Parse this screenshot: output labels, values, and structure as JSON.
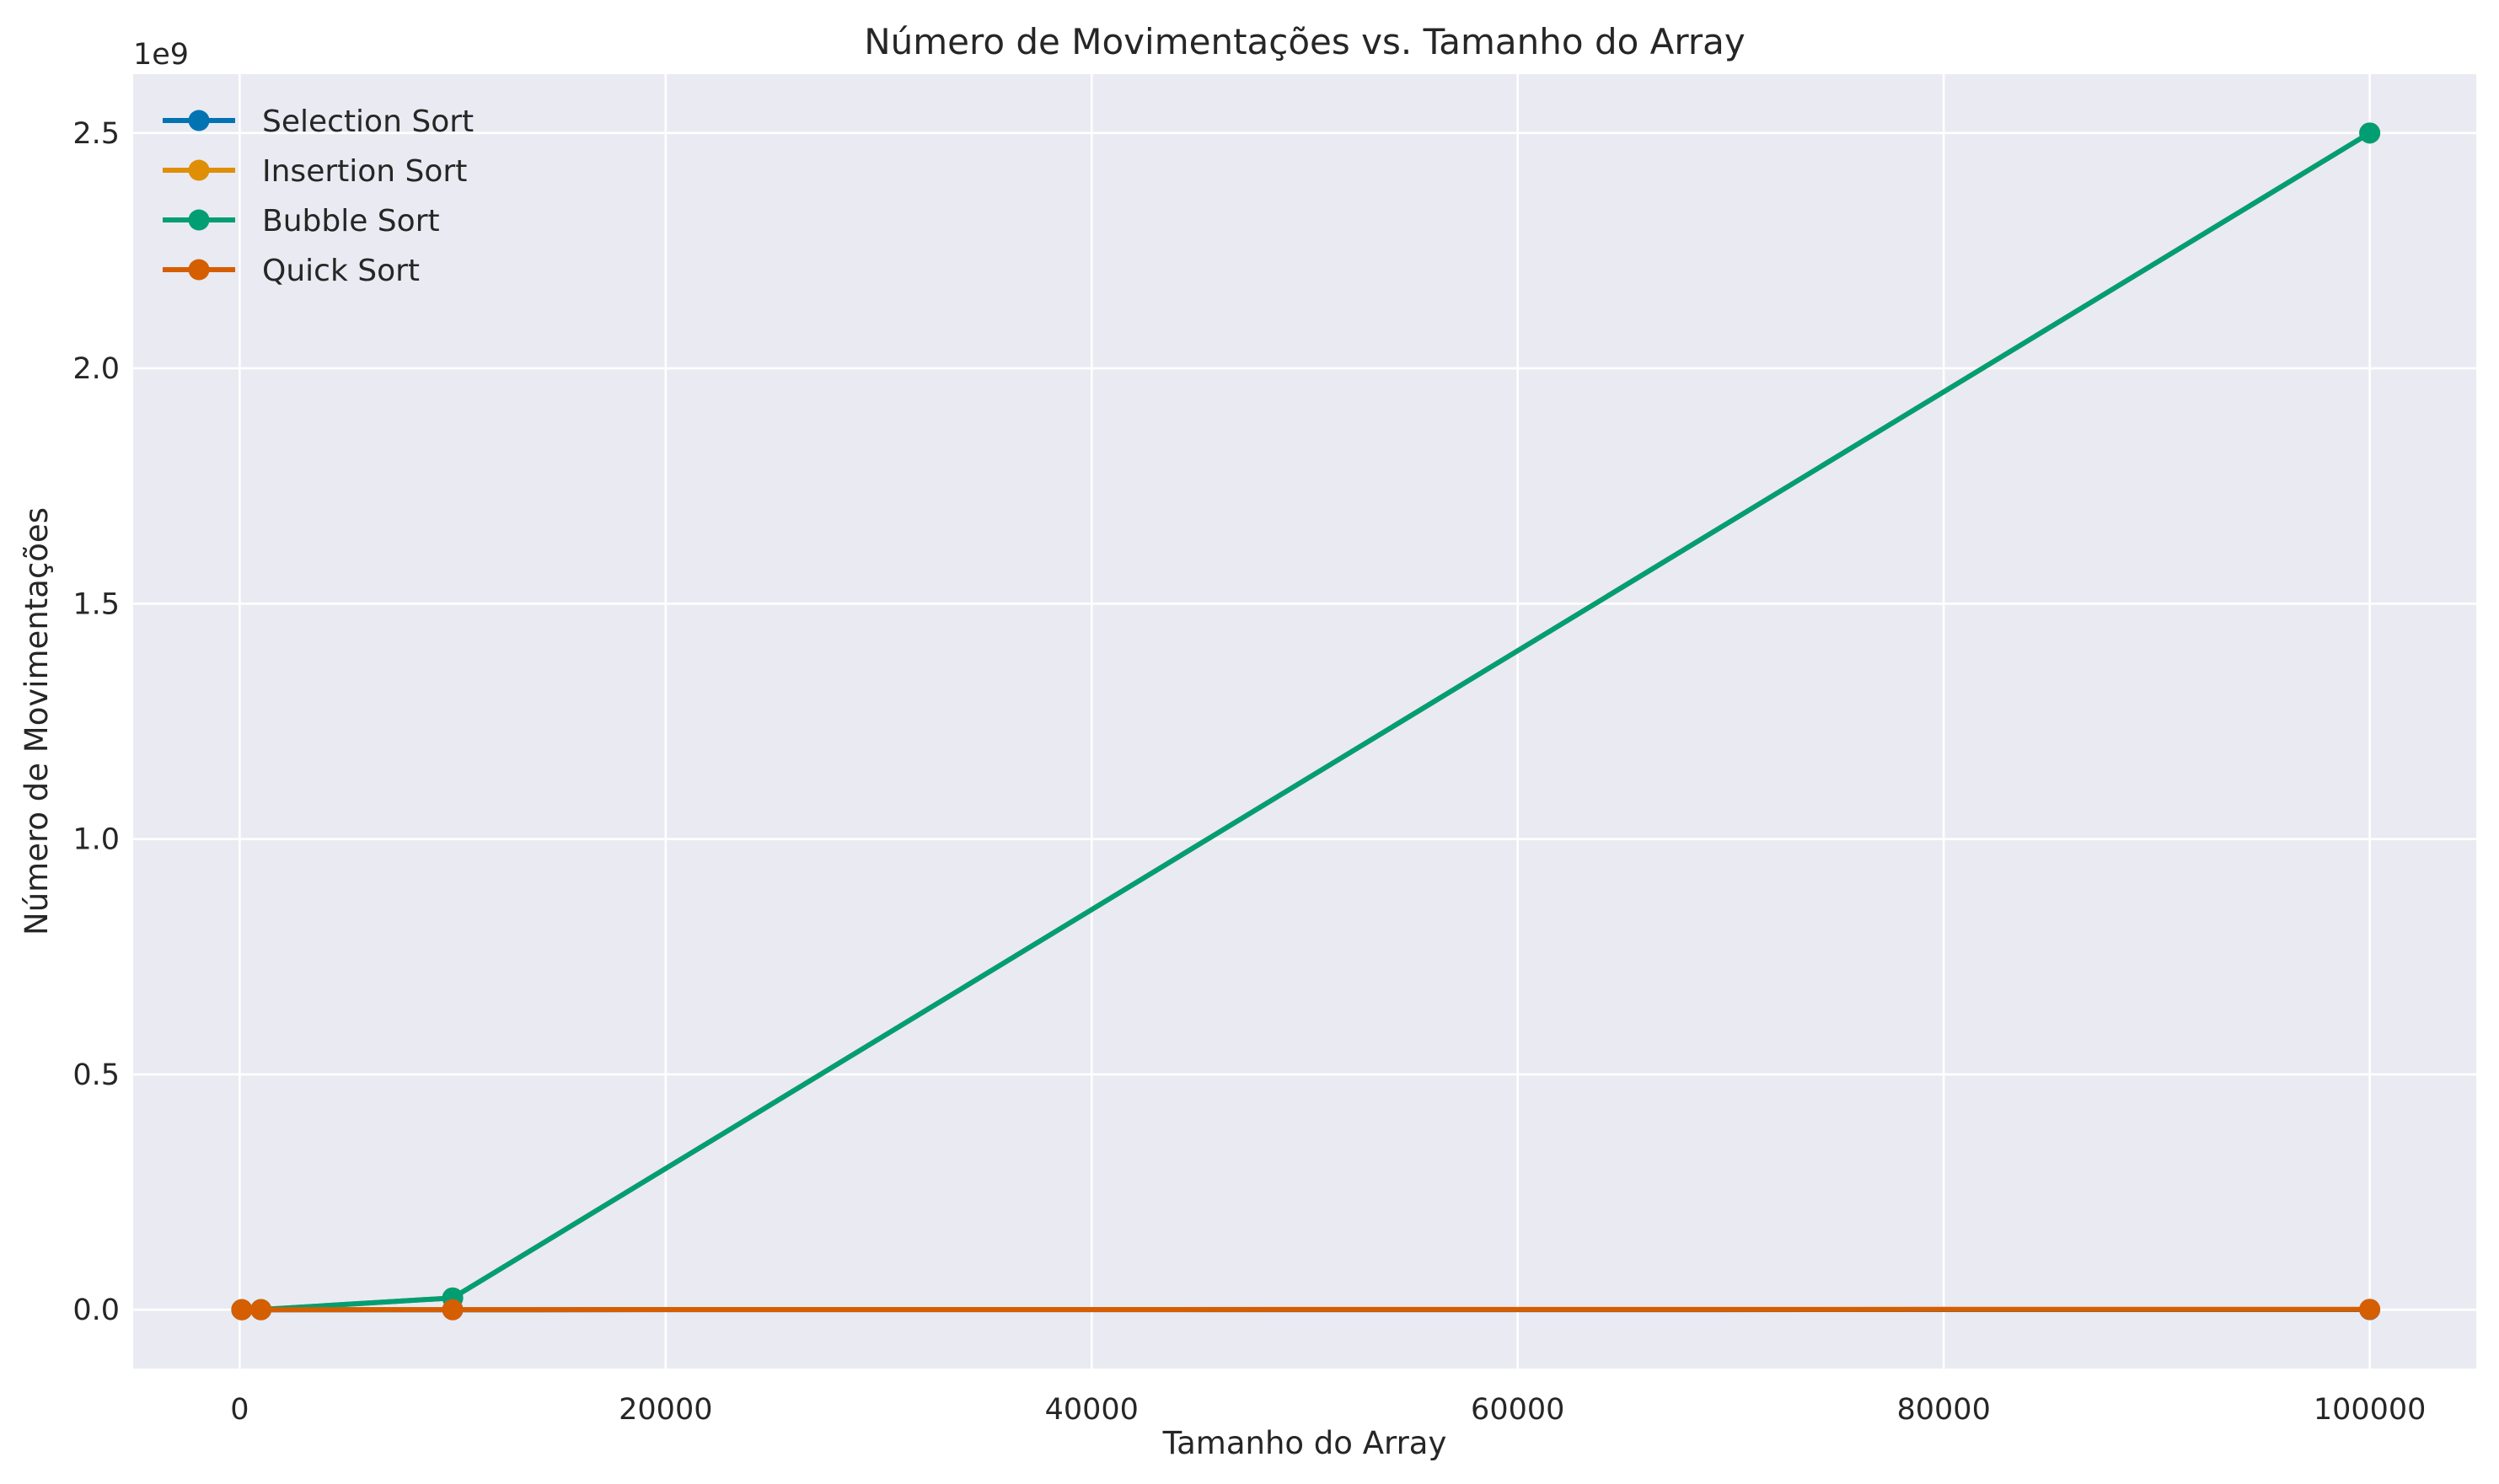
{
  "chart_data": {
    "type": "line",
    "title": "Número de Movimentações vs. Tamanho do Array",
    "xlabel": "Tamanho do Array",
    "ylabel": "Número de Movimentações",
    "y_offset_label": "1e9",
    "y_scale_factor": 1000000000,
    "xlim": [
      -5000,
      105000
    ],
    "ylim": [
      -125000000,
      2625000000
    ],
    "x_ticks": [
      0,
      20000,
      40000,
      60000,
      80000,
      100000
    ],
    "x_tick_labels": [
      "0",
      "20000",
      "40000",
      "60000",
      "80000",
      "100000"
    ],
    "y_ticks": [
      0,
      500000000,
      1000000000,
      1500000000,
      2000000000,
      2500000000
    ],
    "y_tick_labels": [
      "0.0",
      "0.5",
      "1.0",
      "1.5",
      "2.0",
      "2.5"
    ],
    "grid": true,
    "legend_position": "top-left",
    "x": [
      100,
      1000,
      10000,
      100000
    ],
    "series": [
      {
        "name": "Selection Sort",
        "color": "#0173b2",
        "values": [
          300,
          3000,
          30000,
          300000
        ]
      },
      {
        "name": "Insertion Sort",
        "color": "#de8f05",
        "values": [
          2500,
          250000,
          25000000,
          2500000000
        ]
      },
      {
        "name": "Bubble Sort",
        "color": "#029e73",
        "values": [
          2500,
          250000,
          25000000,
          2500000000
        ]
      },
      {
        "name": "Quick Sort",
        "color": "#d55e00",
        "values": [
          300,
          4500,
          60000,
          800000
        ]
      }
    ],
    "colors": {
      "background": "#eaeaf2",
      "grid": "#ffffff",
      "text": "#262626"
    }
  }
}
